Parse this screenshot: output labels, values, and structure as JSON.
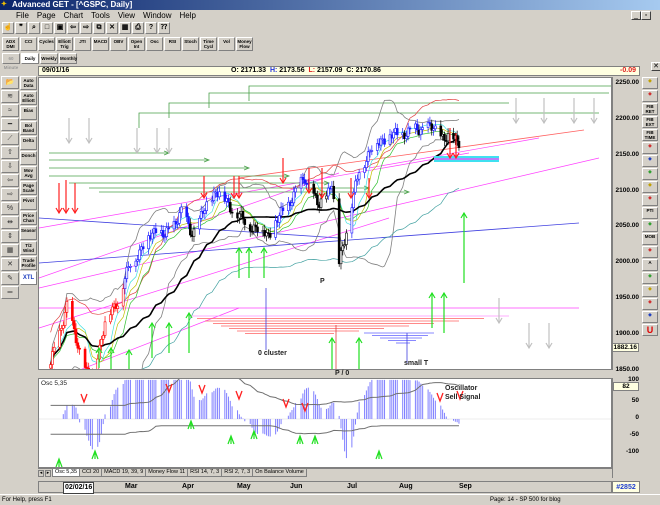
{
  "window": {
    "title": "Advanced GET - [^GSPC, Daily]"
  },
  "menu": [
    "File",
    "Page",
    "Chart",
    "Tools",
    "View",
    "Window",
    "Help"
  ],
  "toolbar": {
    "icons": [
      "hand-icon",
      "quote-icon",
      "magnify-icon",
      "new-page-icon",
      "save-icon",
      "back-icon",
      "forward-icon",
      "copy-icon",
      "close-chart-icon",
      "data-icon",
      "print-icon",
      "help-icon",
      "context-help-icon"
    ],
    "indicators": [
      "ADX DMI",
      "CCI",
      "Cycles",
      "Elliott Trig",
      "JTI",
      "MACD",
      "OBV",
      "Open Int",
      "Osc",
      "RSI",
      "Stoch",
      "Time Cycl",
      "Vol",
      "Money Flow"
    ],
    "timeframes": [
      "60 Minute",
      "Daily",
      "Weekly",
      "Monthly"
    ],
    "active_timeframe": "Daily"
  },
  "info": {
    "date": "09/01/16",
    "open_label": "O:",
    "open": "2171.33",
    "high_label": "H:",
    "high": "2173.56",
    "low_label": "L:",
    "low": "2157.09",
    "close_label": "C:",
    "close": "2170.86",
    "change": "-0.09"
  },
  "left_tools": [
    "Auto Data",
    "Auto Elliott",
    "Bias",
    "Bol Band",
    "Delta",
    "Donch",
    "Mov Avg",
    "Page Scale",
    "Pivot",
    "Price Chan",
    "Seasonal",
    "T/2 Wind",
    "Trade Profile",
    "XTL"
  ],
  "right_tools": [
    "pencil-icon",
    "trendline-icon",
    "FIB RET",
    "FIB EXT",
    "FIB TIME",
    "ellipse-icon",
    "fan-icon",
    "box-icon",
    "oval-icon",
    "magnet-icon",
    "PTI",
    "grid-icon",
    "MOB",
    "globe-icon",
    "A",
    "zoom-icon",
    "eraser-icon",
    "pattern-icon",
    "copy-icon",
    "U"
  ],
  "price_axis": {
    "ticks": [
      "2250.00",
      "2200.00",
      "2150.00",
      "2100.00",
      "2050.00",
      "2000.00",
      "1950.00",
      "1900.00",
      "1850.00"
    ],
    "cursor_value": "1882.16"
  },
  "osc_axis": {
    "ticks": [
      "100",
      "50",
      "0",
      "-50",
      "-100"
    ],
    "cursor_value": "82"
  },
  "annotations": {
    "cluster": "0 cluster",
    "p": "P",
    "p0": "P / 0",
    "small_t": "small T",
    "osc_signal_1": "Oscillator",
    "osc_signal_2": "Sell Signal"
  },
  "osc": {
    "label": "Osc 5,35"
  },
  "osc_tabs": [
    "Osc 5,35",
    "CCI 20",
    "MACD 19, 39, 9",
    "Money Flow 11",
    "RSI 14, 7, 3",
    "RSI 2, 7, 3",
    "On Balance Volume"
  ],
  "date_axis": {
    "start": "02/02/16",
    "months": [
      "Mar",
      "Apr",
      "May",
      "Jun",
      "Jul",
      "Aug",
      "Sep"
    ]
  },
  "bar_count": "#2852",
  "status": {
    "help": "For Help, press F1",
    "page": "Page: 14 - SP 500 for blog"
  },
  "colors": {
    "up_trend": "#1a1aff",
    "down_trend": "#000000",
    "early": "#ff0000",
    "sell_arrow": "#ff2020",
    "buy_arrow": "#20e020",
    "projection": "#4aa04a",
    "trendline": "#ff40ff",
    "oscillator": "#8080ff"
  },
  "chart_data": {
    "type": "candlestick",
    "symbol": "^GSPC",
    "ylim": [
      1830,
      2260
    ],
    "price_path": [
      [
        "2016-01-20",
        1859
      ],
      [
        "2016-01-29",
        1940
      ],
      [
        "2016-02-02",
        1903
      ],
      [
        "2016-02-11",
        1829
      ],
      [
        "2016-02-19",
        1917
      ],
      [
        "2016-02-26",
        1948
      ],
      [
        "2016-03-04",
        1999
      ],
      [
        "2016-03-18",
        2049
      ],
      [
        "2016-03-23",
        2036
      ],
      [
        "2016-04-01",
        2072
      ],
      [
        "2016-04-07",
        2041
      ],
      [
        "2016-04-20",
        2102
      ],
      [
        "2016-05-06",
        2057
      ],
      [
        "2016-05-19",
        2040
      ],
      [
        "2016-06-08",
        2119
      ],
      [
        "2016-06-16",
        2077
      ],
      [
        "2016-06-23",
        2113
      ],
      [
        "2016-06-27",
        2000
      ],
      [
        "2016-07-08",
        2129
      ],
      [
        "2016-07-15",
        2161
      ],
      [
        "2016-07-22",
        2175
      ],
      [
        "2016-08-15",
        2190
      ],
      [
        "2016-08-25",
        2175
      ],
      [
        "2016-09-01",
        2170.86
      ]
    ]
  }
}
